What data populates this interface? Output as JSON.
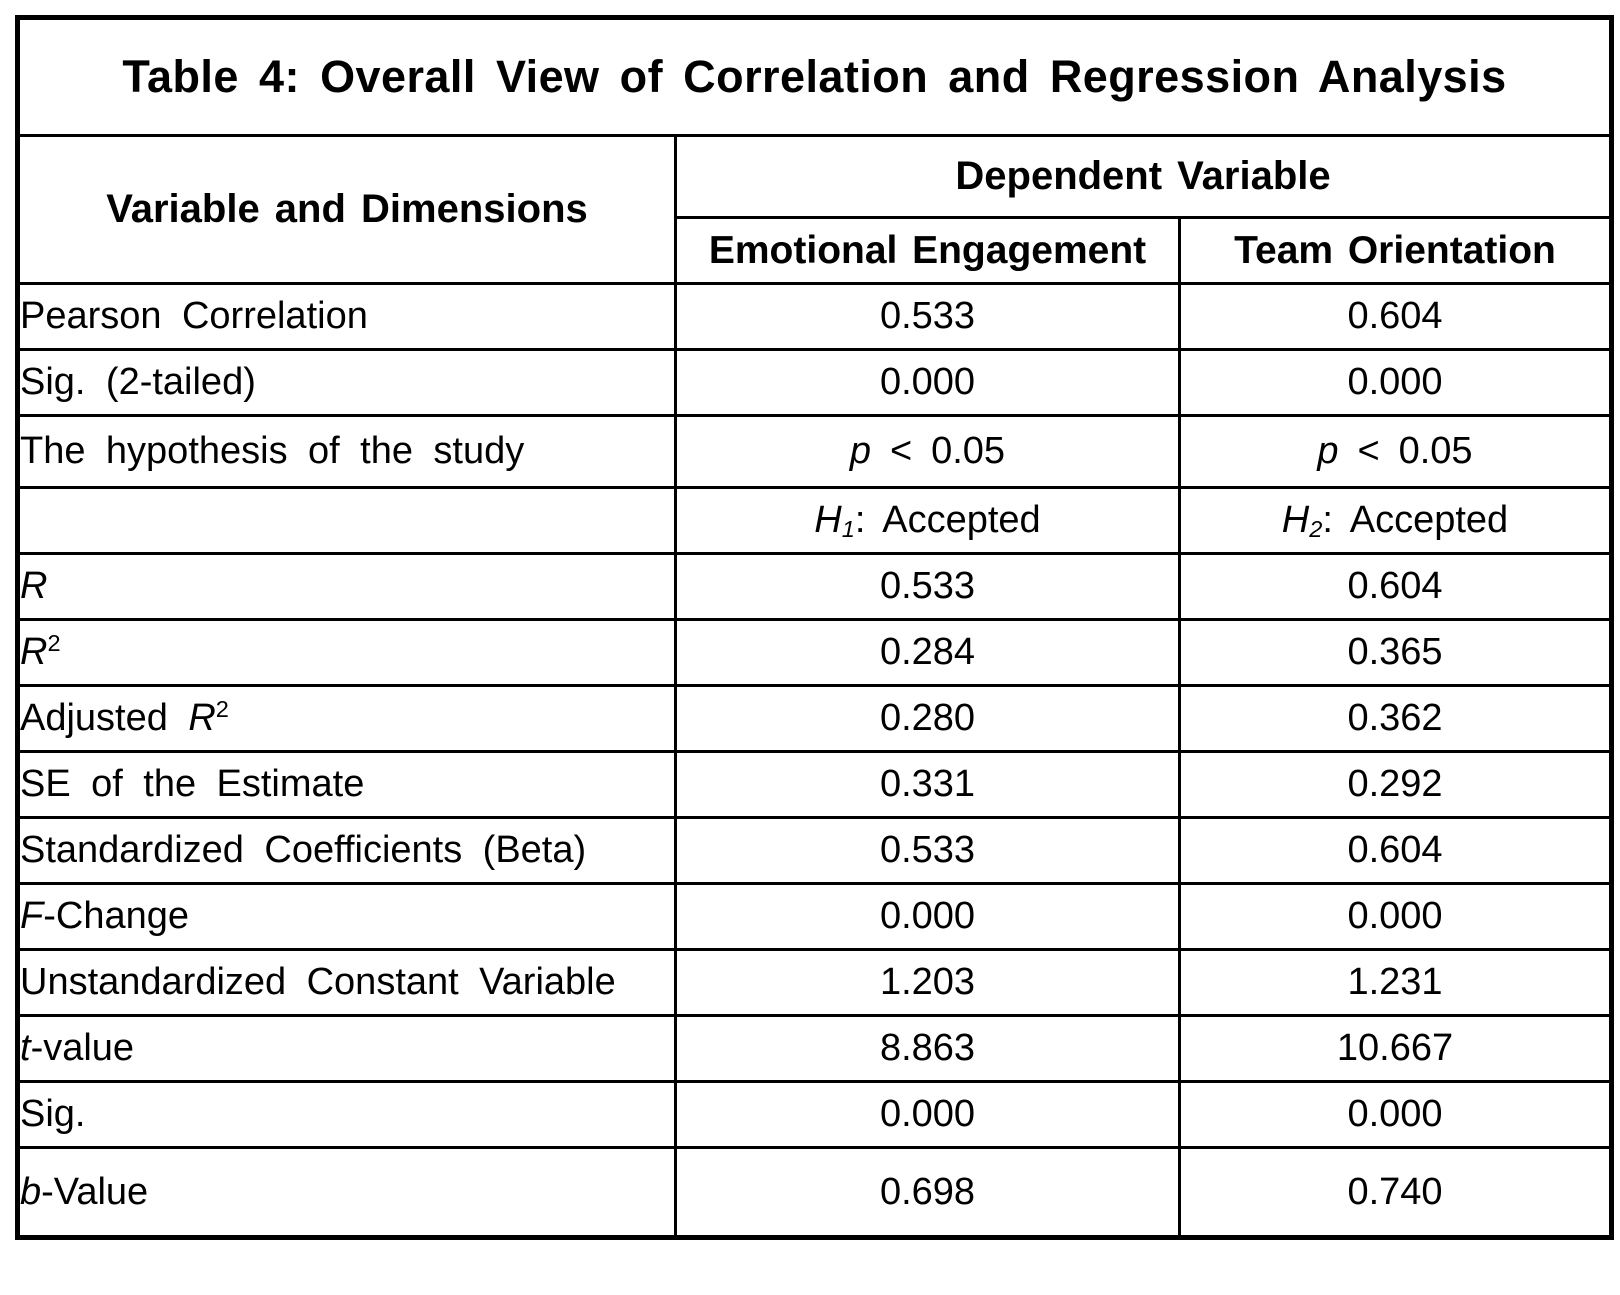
{
  "title": "Table 4: Overall View of Correlation and Regression Analysis",
  "header": {
    "variable_col": "Variable and Dimensions",
    "dependent_group": "Dependent Variable",
    "col_emotional": "Emotional Engagement",
    "col_team": "Team Orientation"
  },
  "rows": [
    {
      "label": "Pearson Correlation",
      "emotional": "0.533",
      "team": "0.604"
    },
    {
      "label": "Sig. (2-tailed)",
      "emotional": "0.000",
      "team": "0.000"
    },
    {
      "kind": "hypothesis",
      "label": "The hypothesis of the study",
      "emotional": [
        {
          "t": "p",
          "i": true
        },
        {
          "t": " < 0.05"
        }
      ],
      "team": [
        {
          "t": "p",
          "i": true
        },
        {
          "t": " < 0.05"
        }
      ]
    },
    {
      "label": "",
      "emotional": [
        {
          "t": "H",
          "i": true
        },
        {
          "t": "1",
          "i": true,
          "sub": true
        },
        {
          "t": ": Accepted"
        }
      ],
      "team": [
        {
          "t": "H",
          "i": true
        },
        {
          "t": "2",
          "i": true,
          "sub": true
        },
        {
          "t": ": Accepted"
        }
      ]
    },
    {
      "label": [
        {
          "t": "R",
          "i": true
        }
      ],
      "emotional": "0.533",
      "team": "0.604"
    },
    {
      "label": [
        {
          "t": "R",
          "i": true
        },
        {
          "t": "2",
          "sup": true
        }
      ],
      "emotional": "0.284",
      "team": "0.365"
    },
    {
      "label": [
        {
          "t": "Adjusted "
        },
        {
          "t": "R",
          "i": true
        },
        {
          "t": "2",
          "sup": true
        }
      ],
      "emotional": "0.280",
      "team": "0.362"
    },
    {
      "label": "SE of the Estimate",
      "emotional": "0.331",
      "team": "0.292"
    },
    {
      "label": "Standardized Coefficients (Beta)",
      "emotional": "0.533",
      "team": "0.604"
    },
    {
      "label": [
        {
          "t": "F",
          "i": true
        },
        {
          "t": "-Change"
        }
      ],
      "emotional": "0.000",
      "team": "0.000"
    },
    {
      "label": "Unstandardized Constant Variable",
      "emotional": "1.203",
      "team": "1.231"
    },
    {
      "label": [
        {
          "t": "t",
          "i": true
        },
        {
          "t": "-value"
        }
      ],
      "emotional": "8.863",
      "team": "10.667"
    },
    {
      "label": "Sig.",
      "emotional": "0.000",
      "team": "0.000"
    },
    {
      "label": [
        {
          "t": "b",
          "i": true
        },
        {
          "t": "-Value"
        }
      ],
      "emotional": "0.698",
      "team": "0.740"
    }
  ],
  "colors": {
    "text": "#000000",
    "border": "#000000",
    "page_background": "#ffffff"
  }
}
